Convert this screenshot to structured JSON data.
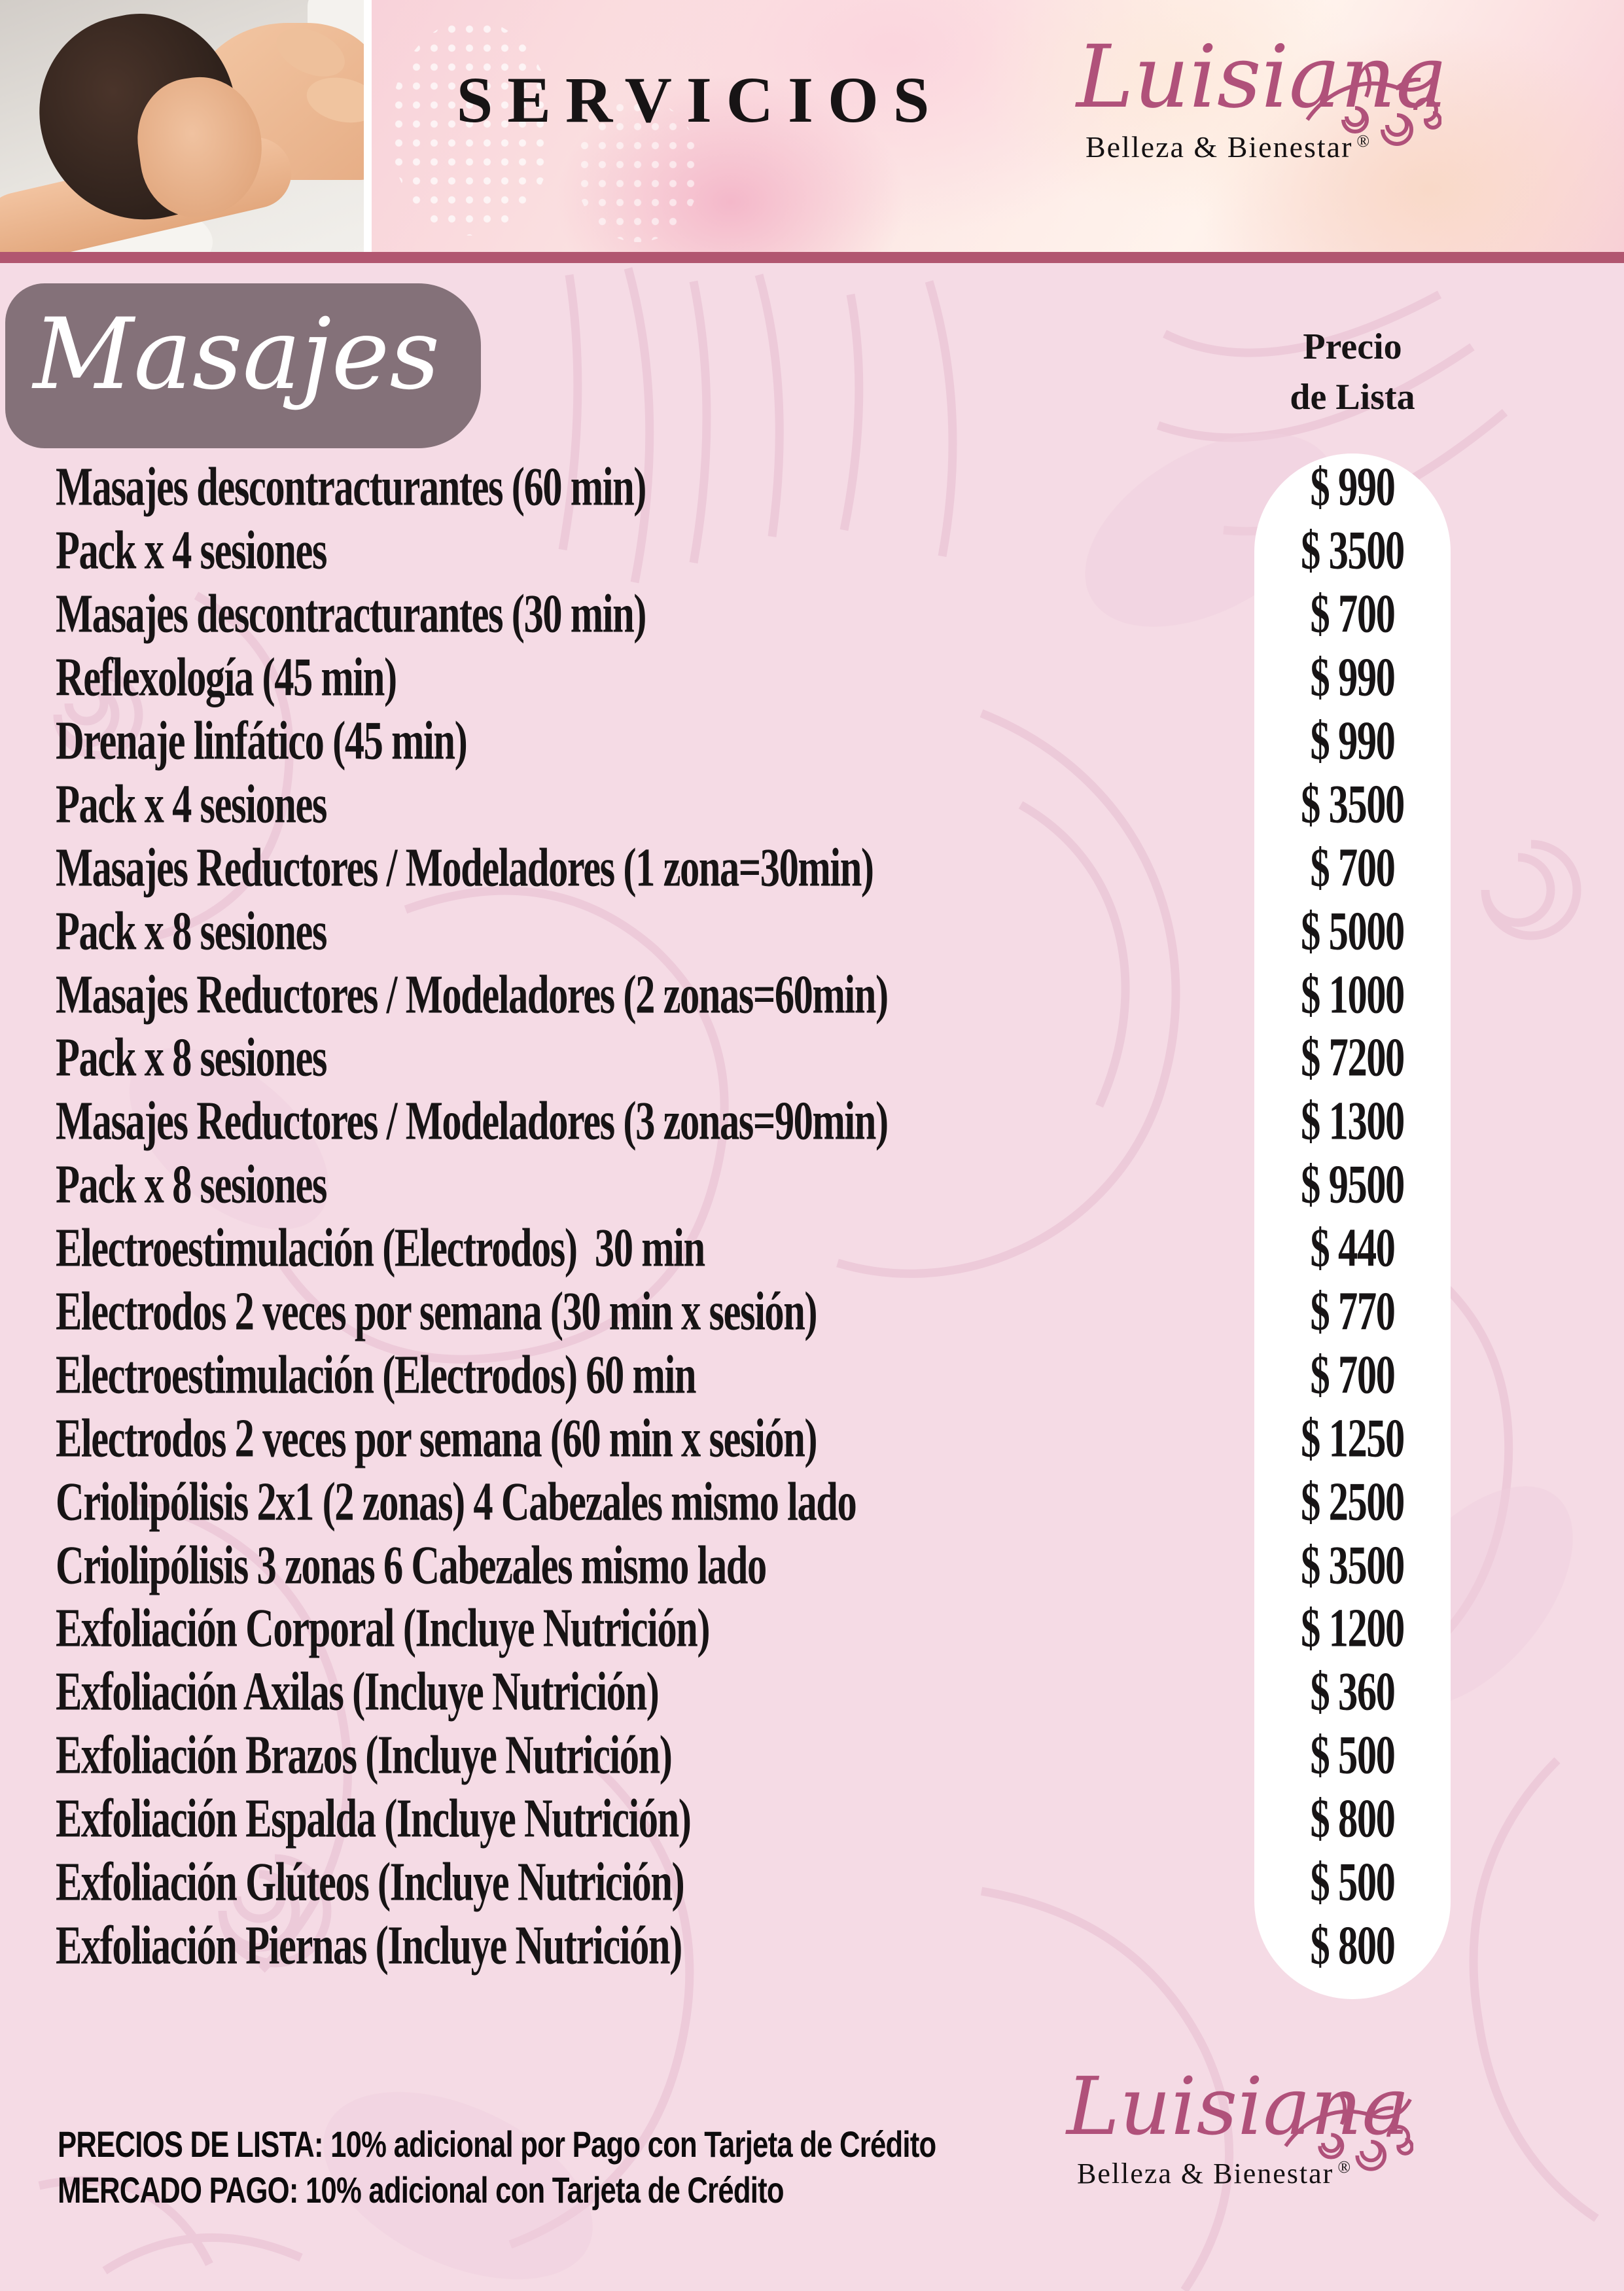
{
  "header": {
    "title": "SERVICIOS",
    "brand": {
      "name": "Luisiana",
      "tagline": "Belleza & Bienestar",
      "registered": "®"
    }
  },
  "section": {
    "title": "Masajes"
  },
  "price_header": {
    "line1": "Precio",
    "line2": "de Lista"
  },
  "currency_prefix": "$",
  "services": [
    {
      "name": "Masajes descontracturantes (60 min)",
      "price": "990"
    },
    {
      "name": "Pack x 4 sesiones",
      "price": "3500"
    },
    {
      "name": "Masajes descontracturantes (30 min)",
      "price": "700"
    },
    {
      "name": "Reflexología (45 min)",
      "price": "990"
    },
    {
      "name": "Drenaje linfático (45 min)",
      "price": "990"
    },
    {
      "name": "Pack x 4 sesiones",
      "price": "3500"
    },
    {
      "name": "Masajes Reductores / Modeladores (1 zona=30min)",
      "price": "700"
    },
    {
      "name": "Pack x 8 sesiones",
      "price": "5000"
    },
    {
      "name": "Masajes Reductores / Modeladores (2 zonas=60min)",
      "price": "1000"
    },
    {
      "name": "Pack x 8 sesiones",
      "price": "7200"
    },
    {
      "name": "Masajes Reductores / Modeladores (3 zonas=90min)",
      "price": "1300"
    },
    {
      "name": "Pack x 8 sesiones",
      "price": "9500"
    },
    {
      "name": "Electroestimulación (Electrodos)  30 min",
      "price": "440"
    },
    {
      "name": "Electrodos 2 veces por semana (30 min x sesión)",
      "price": "770"
    },
    {
      "name": "Electroestimulación (Electrodos) 60 min",
      "price": "700"
    },
    {
      "name": "Electrodos 2 veces por semana (60 min x sesión)",
      "price": "1250"
    },
    {
      "name": "Criolipólisis 2x1 (2 zonas) 4 Cabezales mismo lado",
      "price": "2500"
    },
    {
      "name": "Criolipólisis 3 zonas 6 Cabezales mismo lado",
      "price": "3500"
    },
    {
      "name": "Exfoliación Corporal (Incluye Nutrición)",
      "price": "1200"
    },
    {
      "name": "Exfoliación Axilas (Incluye Nutrición)",
      "price": "360"
    },
    {
      "name": "Exfoliación Brazos (Incluye Nutrición)",
      "price": "500"
    },
    {
      "name": "Exfoliación Espalda (Incluye Nutrición)",
      "price": "800"
    },
    {
      "name": "Exfoliación Glúteos (Incluye Nutrición)",
      "price": "500"
    },
    {
      "name": "Exfoliación Piernas (Incluye Nutrición)",
      "price": "800"
    }
  ],
  "footer": {
    "notes": [
      "PRECIOS DE LISTA: 10% adicional por Pago con Tarjeta de Crédito",
      "MERCADO PAGO: 10% adicional con Tarjeta de Crédito"
    ],
    "brand": {
      "name": "Luisiana",
      "tagline": "Belleza & Bienestar",
      "registered": "®"
    }
  },
  "colors": {
    "accent-rose": "#b15670",
    "brand-pink": "#b0517a",
    "banner-mauve": "rgba(113,96,103,0.86)",
    "page-pink": "#f5dbe5",
    "pattern-pink": "#e9c3d4",
    "text-black": "#171415",
    "column-white": "#ffffff"
  }
}
